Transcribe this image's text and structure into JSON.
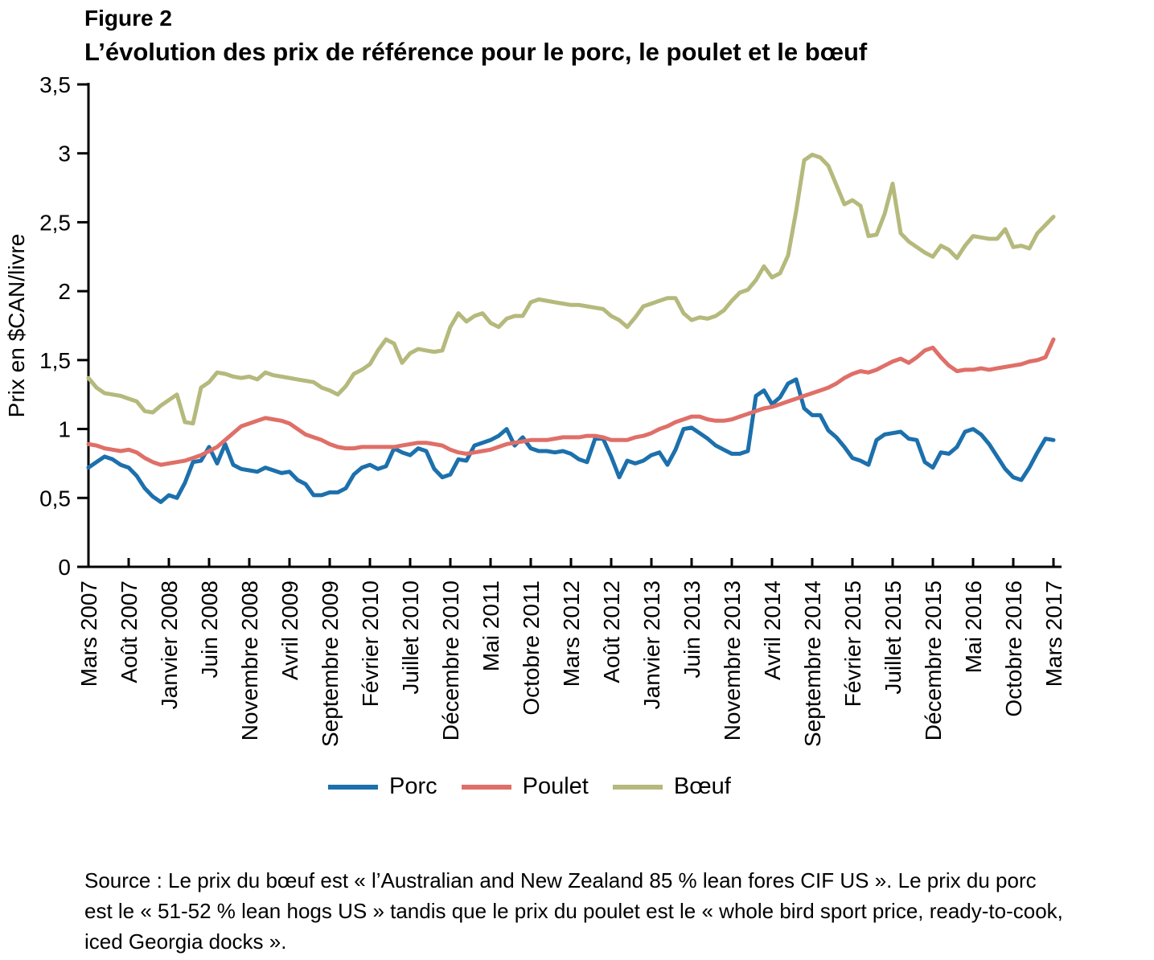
{
  "figure": {
    "label": "Figure 2",
    "title": "L’évolution des prix de référence pour le porc, le poulet et le bœuf"
  },
  "source": {
    "lines": [
      "Source : Le prix du bœuf est « l’Australian and New Zealand 85 % lean fores CIF US ». Le prix du porc",
      "est le « 51-52 % lean hogs US » tandis que le prix du poulet est le « whole bird sport price, ready-to-cook,",
      "iced Georgia docks »."
    ]
  },
  "chart_data": {
    "type": "line",
    "x_unit": "month",
    "x_start": "Mars 2007",
    "x_end": "Mars 2017",
    "n_points": 121,
    "x_tick_step_months": 5,
    "x_tick_labels": [
      "Mars 2007",
      "Août 2007",
      "Janvier 2008",
      "Juin 2008",
      "Novembre 2008",
      "Avril 2009",
      "Septembre 2009",
      "Février 2010",
      "Juillet 2010",
      "Décembre 2010",
      "Mai 2011",
      "Octobre 2011",
      "Mars 2012",
      "Août 2012",
      "Janvier 2013",
      "Juin 2013",
      "Novembre 2013",
      "Avril 2014",
      "Septembre 2014",
      "Février 2015",
      "Juillet 2015",
      "Décembre 2015",
      "Mai 2016",
      "Octobre 2016",
      "Mars 2017"
    ],
    "ylabel": "Prix en $CAN/livre",
    "ylim": [
      0,
      3.5
    ],
    "y_ticks": {
      "values": [
        0,
        0.5,
        1,
        1.5,
        2,
        2.5,
        3,
        3.5
      ],
      "labels": [
        "0",
        "0,5",
        "1",
        "1,5",
        "2",
        "2,5",
        "3",
        "3,5"
      ]
    },
    "grid": false,
    "legend_position": "bottom",
    "axis_color": "#000000",
    "series": [
      {
        "name": "Porc",
        "key": "porc",
        "color": "#1c70ac",
        "values": [
          0.72,
          0.76,
          0.8,
          0.78,
          0.74,
          0.72,
          0.66,
          0.57,
          0.51,
          0.47,
          0.52,
          0.5,
          0.61,
          0.76,
          0.77,
          0.87,
          0.75,
          0.89,
          0.74,
          0.71,
          0.7,
          0.69,
          0.72,
          0.7,
          0.68,
          0.69,
          0.63,
          0.6,
          0.52,
          0.52,
          0.54,
          0.54,
          0.57,
          0.67,
          0.72,
          0.74,
          0.71,
          0.73,
          0.86,
          0.83,
          0.81,
          0.86,
          0.84,
          0.71,
          0.65,
          0.67,
          0.78,
          0.77,
          0.88,
          0.9,
          0.92,
          0.95,
          1.0,
          0.88,
          0.94,
          0.86,
          0.84,
          0.84,
          0.83,
          0.84,
          0.82,
          0.78,
          0.76,
          0.93,
          0.93,
          0.8,
          0.65,
          0.77,
          0.75,
          0.77,
          0.81,
          0.83,
          0.74,
          0.85,
          1.0,
          1.01,
          0.97,
          0.93,
          0.88,
          0.85,
          0.82,
          0.82,
          0.84,
          1.24,
          1.28,
          1.18,
          1.23,
          1.33,
          1.36,
          1.15,
          1.1,
          1.1,
          0.99,
          0.94,
          0.87,
          0.79,
          0.77,
          0.74,
          0.92,
          0.96,
          0.97,
          0.98,
          0.93,
          0.92,
          0.76,
          0.72,
          0.83,
          0.82,
          0.87,
          0.98,
          1.0,
          0.96,
          0.89,
          0.8,
          0.71,
          0.65,
          0.63,
          0.72,
          0.83,
          0.93,
          0.92
        ]
      },
      {
        "name": "Poulet",
        "key": "poulet",
        "color": "#df6f68",
        "values": [
          0.89,
          0.88,
          0.86,
          0.85,
          0.84,
          0.85,
          0.83,
          0.79,
          0.76,
          0.74,
          0.75,
          0.76,
          0.77,
          0.79,
          0.81,
          0.84,
          0.87,
          0.92,
          0.97,
          1.02,
          1.04,
          1.06,
          1.08,
          1.07,
          1.06,
          1.04,
          1.0,
          0.96,
          0.94,
          0.92,
          0.89,
          0.87,
          0.86,
          0.86,
          0.87,
          0.87,
          0.87,
          0.87,
          0.87,
          0.88,
          0.89,
          0.9,
          0.9,
          0.89,
          0.88,
          0.85,
          0.83,
          0.82,
          0.83,
          0.84,
          0.85,
          0.87,
          0.89,
          0.9,
          0.91,
          0.92,
          0.92,
          0.92,
          0.93,
          0.94,
          0.94,
          0.94,
          0.95,
          0.95,
          0.94,
          0.92,
          0.92,
          0.92,
          0.94,
          0.95,
          0.97,
          1.0,
          1.02,
          1.05,
          1.07,
          1.09,
          1.09,
          1.07,
          1.06,
          1.06,
          1.07,
          1.09,
          1.11,
          1.13,
          1.15,
          1.16,
          1.18,
          1.2,
          1.22,
          1.24,
          1.26,
          1.28,
          1.3,
          1.33,
          1.37,
          1.4,
          1.42,
          1.41,
          1.43,
          1.46,
          1.49,
          1.51,
          1.48,
          1.52,
          1.57,
          1.59,
          1.52,
          1.46,
          1.42,
          1.43,
          1.43,
          1.44,
          1.43,
          1.44,
          1.45,
          1.46,
          1.47,
          1.49,
          1.5,
          1.52,
          1.65
        ]
      },
      {
        "name": "Bœuf",
        "key": "boeuf",
        "color": "#b5b97c",
        "values": [
          1.37,
          1.3,
          1.26,
          1.25,
          1.24,
          1.22,
          1.2,
          1.13,
          1.12,
          1.17,
          1.21,
          1.25,
          1.05,
          1.04,
          1.3,
          1.34,
          1.41,
          1.4,
          1.38,
          1.37,
          1.38,
          1.36,
          1.41,
          1.39,
          1.38,
          1.37,
          1.36,
          1.35,
          1.34,
          1.3,
          1.28,
          1.25,
          1.31,
          1.4,
          1.43,
          1.47,
          1.57,
          1.65,
          1.62,
          1.48,
          1.55,
          1.58,
          1.57,
          1.56,
          1.57,
          1.74,
          1.84,
          1.78,
          1.82,
          1.84,
          1.77,
          1.74,
          1.8,
          1.82,
          1.82,
          1.92,
          1.94,
          1.93,
          1.92,
          1.91,
          1.9,
          1.9,
          1.89,
          1.88,
          1.87,
          1.82,
          1.79,
          1.74,
          1.81,
          1.89,
          1.91,
          1.93,
          1.95,
          1.95,
          1.84,
          1.79,
          1.81,
          1.8,
          1.82,
          1.86,
          1.93,
          1.99,
          2.01,
          2.08,
          2.18,
          2.1,
          2.13,
          2.26,
          2.58,
          2.95,
          2.99,
          2.97,
          2.91,
          2.77,
          2.63,
          2.66,
          2.62,
          2.4,
          2.41,
          2.56,
          2.78,
          2.42,
          2.36,
          2.32,
          2.28,
          2.25,
          2.33,
          2.3,
          2.24,
          2.33,
          2.4,
          2.39,
          2.38,
          2.38,
          2.45,
          2.32,
          2.33,
          2.31,
          2.42,
          2.48,
          2.54
        ]
      }
    ]
  }
}
